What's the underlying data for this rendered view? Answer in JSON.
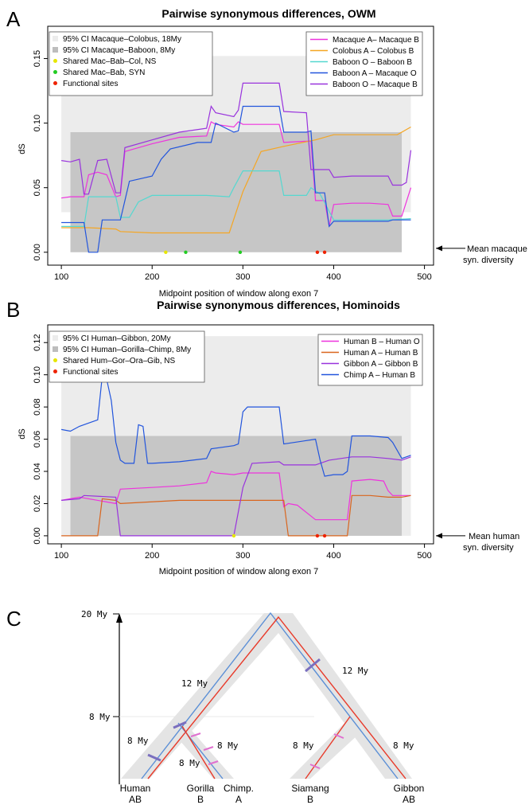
{
  "panels": {
    "A": {
      "letter": "A",
      "title": "Pairwise synonymous differences, OWM",
      "ylabel": "dS",
      "xlabel": "Midpoint position of window along exon 7",
      "yticks": [
        "0.00",
        "0.05",
        "0.10",
        "0.15"
      ],
      "xticks": [
        "100",
        "200",
        "300",
        "400",
        "500"
      ],
      "legend_left": [
        {
          "label": "95% CI Macaque–Colobus, 18My",
          "color": "#ececec"
        },
        {
          "label": "95% CI Macaque–Baboon, 8My",
          "color": "#bdbdbd"
        },
        {
          "label": "Shared Mac–Bab–Col, NS",
          "color": "#e6e600"
        },
        {
          "label": "Shared Mac–Bab, SYN",
          "color": "#22cc22"
        },
        {
          "label": "Functional sites",
          "color": "#ee2200"
        }
      ],
      "legend_right": [
        {
          "label": "Macaque A– Macaque B",
          "color": "#ee33dd"
        },
        {
          "label": "Colobus A – Colobus B",
          "color": "#f5a623"
        },
        {
          "label": "Baboon O – Baboon B",
          "color": "#55d8d0"
        },
        {
          "label": "Baboon A – Macaque O",
          "color": "#2255dd"
        },
        {
          "label": "Baboon O – Macaque B",
          "color": "#9933dd"
        }
      ],
      "arrow_note_line1": "Mean macaque",
      "arrow_note_line2": "syn. diversity"
    },
    "B": {
      "letter": "B",
      "title": "Pairwise synonymous differences, Hominoids",
      "ylabel": "dS",
      "xlabel": "Midpoint position of window along exon 7",
      "yticks": [
        "0.00",
        "0.02",
        "0.04",
        "0.06",
        "0.08",
        "0.10",
        "0.12"
      ],
      "xticks": [
        "100",
        "200",
        "300",
        "400",
        "500"
      ],
      "legend_left": [
        {
          "label": "95% CI Human–Gibbon, 20My",
          "color": "#ececec"
        },
        {
          "label": "95% CI Human–Gorilla–Chimp, 8My",
          "color": "#bdbdbd"
        },
        {
          "label": "Shared Hum–Gor–Ora–Gib, NS",
          "color": "#e6e600"
        },
        {
          "label": "Functional sites",
          "color": "#ee2200"
        }
      ],
      "legend_right": [
        {
          "label": "Human B – Human O",
          "color": "#ee33dd"
        },
        {
          "label": "Human A – Human B",
          "color": "#d9651e"
        },
        {
          "label": "Gibbon A – Gibbon B",
          "color": "#9933dd"
        },
        {
          "label": "Chimp A – Human B",
          "color": "#2255dd"
        }
      ],
      "arrow_note_line1": "Mean human",
      "arrow_note_line2": "syn. diversity"
    },
    "C": {
      "letter": "C",
      "axis_labels": [
        "20 My",
        "8 My"
      ],
      "branch_labels": [
        "12 My",
        "12 My",
        "8 My",
        "8 My",
        "8 My",
        "8 My",
        "8 My"
      ],
      "tips": [
        {
          "line1": "Human",
          "line2": "AB"
        },
        {
          "line1": "Gorilla",
          "line2": "B"
        },
        {
          "line1": "Chimp.",
          "line2": "A"
        },
        {
          "line1": "Siamang",
          "line2": "B"
        },
        {
          "line1": "Gibbon",
          "line2": "AB"
        }
      ]
    }
  },
  "chart_data": [
    {
      "type": "line",
      "title": "Pairwise synonymous differences, OWM",
      "xlabel": "Midpoint position of window along exon 7",
      "ylabel": "dS",
      "xlim": [
        85,
        510
      ],
      "ylim": [
        -0.01,
        0.175
      ],
      "ci_bands": [
        {
          "name": "95% CI Macaque–Colobus, 18My",
          "x": [
            100,
            485
          ],
          "y": [
            0.031,
            0.152
          ],
          "color": "#ececec"
        },
        {
          "name": "95% CI Macaque–Baboon, 8My",
          "x": [
            110,
            475
          ],
          "y": [
            0.0,
            0.093
          ],
          "color": "#c6c6c6"
        }
      ],
      "series": [
        {
          "name": "Macaque A– Macaque B",
          "color": "#ee33dd",
          "x": [
            100,
            110,
            125,
            130,
            140,
            150,
            160,
            165,
            170,
            200,
            230,
            260,
            265,
            270,
            290,
            295,
            300,
            340,
            345,
            370,
            375,
            380,
            390,
            395,
            400,
            420,
            440,
            460,
            465,
            470,
            475,
            485
          ],
          "y": [
            0.042,
            0.043,
            0.043,
            0.06,
            0.062,
            0.06,
            0.043,
            0.044,
            0.078,
            0.084,
            0.089,
            0.09,
            0.101,
            0.099,
            0.097,
            0.101,
            0.099,
            0.099,
            0.085,
            0.086,
            0.086,
            0.04,
            0.04,
            0.02,
            0.037,
            0.038,
            0.038,
            0.037,
            0.028,
            0.028,
            0.028,
            0.05
          ]
        },
        {
          "name": "Colobus A – Colobus B",
          "color": "#f5a623",
          "x": [
            100,
            130,
            160,
            165,
            200,
            230,
            270,
            285,
            300,
            320,
            345,
            380,
            400,
            430,
            460,
            470,
            485
          ],
          "y": [
            0.019,
            0.019,
            0.018,
            0.016,
            0.015,
            0.015,
            0.015,
            0.015,
            0.047,
            0.078,
            0.082,
            0.087,
            0.091,
            0.091,
            0.091,
            0.091,
            0.097
          ]
        },
        {
          "name": "Baboon O – Baboon B",
          "color": "#55d8d0",
          "x": [
            100,
            125,
            130,
            160,
            165,
            175,
            185,
            200,
            230,
            260,
            285,
            290,
            300,
            340,
            345,
            370,
            375,
            385,
            400,
            440,
            460,
            485
          ],
          "y": [
            0.02,
            0.02,
            0.043,
            0.043,
            0.027,
            0.027,
            0.039,
            0.044,
            0.044,
            0.044,
            0.043,
            0.05,
            0.063,
            0.063,
            0.044,
            0.044,
            0.05,
            0.045,
            0.025,
            0.025,
            0.025,
            0.026
          ]
        },
        {
          "name": "Baboon A – Macaque O",
          "color": "#2255dd",
          "x": [
            100,
            125,
            130,
            140,
            145,
            165,
            175,
            200,
            210,
            220,
            250,
            265,
            270,
            290,
            295,
            300,
            310,
            340,
            345,
            370,
            375,
            380,
            390,
            395,
            400,
            420,
            440,
            460,
            465,
            475,
            485
          ],
          "y": [
            0.023,
            0.023,
            0.0,
            0.0,
            0.025,
            0.025,
            0.055,
            0.059,
            0.072,
            0.08,
            0.085,
            0.085,
            0.1,
            0.093,
            0.094,
            0.113,
            0.113,
            0.113,
            0.093,
            0.093,
            0.094,
            0.046,
            0.046,
            0.02,
            0.024,
            0.024,
            0.024,
            0.024,
            0.025,
            0.025,
            0.025
          ]
        },
        {
          "name": "Baboon O – Macaque B",
          "color": "#9933dd",
          "x": [
            100,
            110,
            120,
            125,
            130,
            140,
            150,
            160,
            165,
            170,
            200,
            230,
            260,
            265,
            270,
            290,
            295,
            300,
            340,
            345,
            370,
            375,
            395,
            400,
            420,
            440,
            460,
            465,
            475,
            480,
            485
          ],
          "y": [
            0.071,
            0.07,
            0.072,
            0.045,
            0.045,
            0.071,
            0.072,
            0.046,
            0.046,
            0.081,
            0.087,
            0.093,
            0.096,
            0.113,
            0.108,
            0.105,
            0.11,
            0.131,
            0.131,
            0.109,
            0.108,
            0.064,
            0.064,
            0.058,
            0.059,
            0.059,
            0.059,
            0.052,
            0.052,
            0.054,
            0.079
          ]
        }
      ],
      "markers": [
        {
          "name": "Shared Mac–Bab–Col, NS",
          "x": [
            215
          ],
          "y": [
            0.0
          ],
          "color": "#e6e600"
        },
        {
          "name": "Shared Mac–Bab, SYN",
          "x": [
            237,
            297
          ],
          "y": [
            0.0,
            0.0
          ],
          "color": "#22cc22"
        },
        {
          "name": "Functional sites",
          "x": [
            382,
            390
          ],
          "y": [
            0.0,
            0.0
          ],
          "color": "#ee2200"
        }
      ],
      "mean_arrow_y": 0.003,
      "legend_positions": [
        "top-left",
        "top-right"
      ]
    },
    {
      "type": "line",
      "title": "Pairwise synonymous differences, Hominoids",
      "xlabel": "Midpoint position of window along exon 7",
      "ylabel": "dS",
      "xlim": [
        85,
        510
      ],
      "ylim": [
        -0.005,
        0.131
      ],
      "ci_bands": [
        {
          "name": "95% CI Human–Gibbon, 20My",
          "x": [
            100,
            485
          ],
          "y": [
            0.0,
            0.124
          ],
          "color": "#ececec"
        },
        {
          "name": "95% CI Human–Gorilla–Chimp, 8My",
          "x": [
            110,
            475
          ],
          "y": [
            0.0,
            0.062
          ],
          "color": "#c6c6c6"
        }
      ],
      "series": [
        {
          "name": "Human B – Human O",
          "color": "#ee33dd",
          "x": [
            100,
            110,
            120,
            160,
            165,
            200,
            230,
            260,
            265,
            270,
            290,
            300,
            340,
            345,
            350,
            360,
            380,
            400,
            415,
            420,
            440,
            455,
            460,
            465,
            475,
            485
          ],
          "y": [
            0.022,
            0.023,
            0.024,
            0.02,
            0.029,
            0.03,
            0.031,
            0.033,
            0.04,
            0.039,
            0.038,
            0.039,
            0.039,
            0.018,
            0.02,
            0.019,
            0.01,
            0.01,
            0.01,
            0.034,
            0.035,
            0.034,
            0.028,
            0.025,
            0.025,
            0.025
          ]
        },
        {
          "name": "Human A – Human B",
          "color": "#d9651e",
          "x": [
            100,
            140,
            145,
            160,
            165,
            230,
            260,
            300,
            345,
            350,
            400,
            415,
            420,
            440,
            460,
            475,
            485
          ],
          "y": [
            0.0,
            0.0,
            0.023,
            0.022,
            0.02,
            0.022,
            0.022,
            0.022,
            0.022,
            0.0,
            0.0,
            0.0,
            0.025,
            0.025,
            0.024,
            0.024,
            0.025
          ]
        },
        {
          "name": "Gibbon A – Gibbon B",
          "color": "#9933dd",
          "x": [
            100,
            120,
            125,
            160,
            165,
            230,
            290,
            300,
            310,
            340,
            345,
            380,
            395,
            420,
            440,
            460,
            475,
            485
          ],
          "y": [
            0.022,
            0.023,
            0.025,
            0.024,
            0.0,
            0.0,
            0.0,
            0.03,
            0.045,
            0.046,
            0.044,
            0.044,
            0.047,
            0.049,
            0.049,
            0.048,
            0.047,
            0.049
          ]
        },
        {
          "name": "Chimp A – Human B",
          "color": "#2255dd",
          "x": [
            100,
            110,
            120,
            130,
            140,
            145,
            150,
            155,
            160,
            165,
            170,
            180,
            185,
            190,
            195,
            200,
            230,
            260,
            265,
            290,
            295,
            300,
            305,
            340,
            345,
            380,
            385,
            390,
            400,
            410,
            415,
            420,
            440,
            460,
            465,
            475,
            480,
            485
          ],
          "y": [
            0.066,
            0.065,
            0.068,
            0.07,
            0.072,
            0.099,
            0.097,
            0.084,
            0.058,
            0.047,
            0.045,
            0.045,
            0.069,
            0.068,
            0.045,
            0.045,
            0.046,
            0.048,
            0.054,
            0.056,
            0.057,
            0.077,
            0.08,
            0.08,
            0.057,
            0.06,
            0.047,
            0.037,
            0.038,
            0.038,
            0.04,
            0.062,
            0.062,
            0.061,
            0.058,
            0.048,
            0.049,
            0.05
          ]
        }
      ],
      "markers": [
        {
          "name": "Shared Hum–Gor–Ora–Gib, NS",
          "x": [
            290
          ],
          "y": [
            0.0
          ],
          "color": "#e6e600"
        },
        {
          "name": "Functional sites",
          "x": [
            382,
            390
          ],
          "y": [
            0.0,
            0.0
          ],
          "color": "#ee2200"
        }
      ],
      "mean_arrow_y": 0.0,
      "legend_positions": [
        "top-left",
        "top-right"
      ]
    }
  ]
}
